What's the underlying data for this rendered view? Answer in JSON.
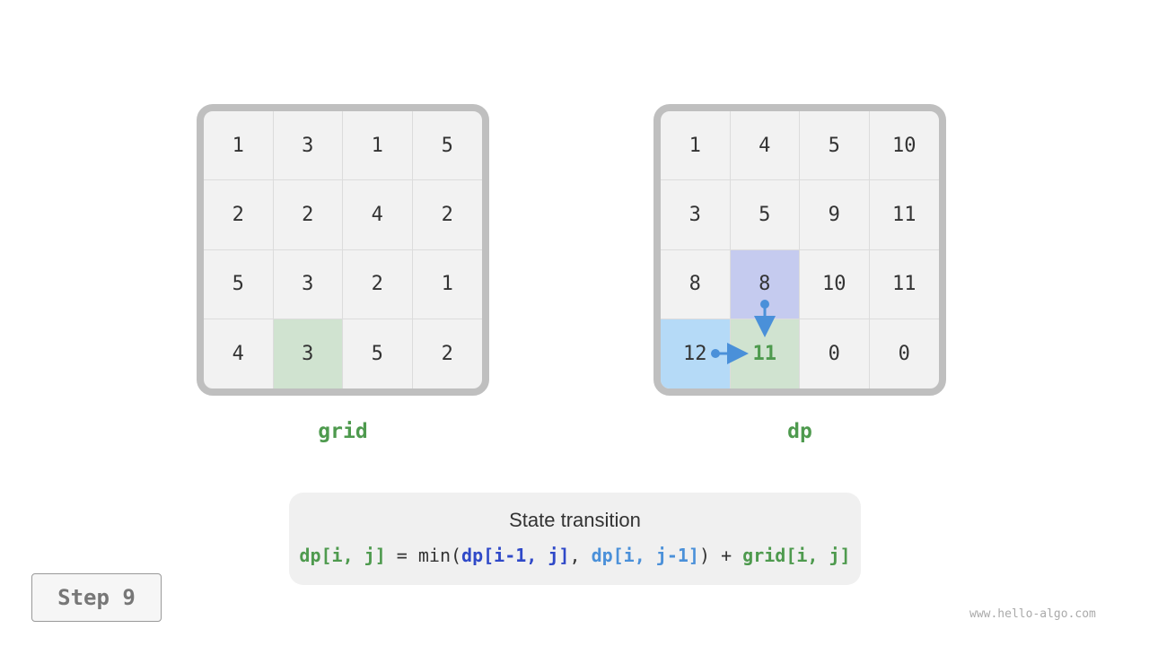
{
  "grid": {
    "label": "grid",
    "values": [
      [
        "1",
        "3",
        "1",
        "5"
      ],
      [
        "2",
        "2",
        "4",
        "2"
      ],
      [
        "5",
        "3",
        "2",
        "1"
      ],
      [
        "4",
        "3",
        "5",
        "2"
      ]
    ],
    "highlight": [
      3,
      1
    ]
  },
  "dp": {
    "label": "dp",
    "values": [
      [
        "1",
        "4",
        "5",
        "10"
      ],
      [
        "3",
        "5",
        "9",
        "11"
      ],
      [
        "8",
        "8",
        "10",
        "11"
      ],
      [
        "12",
        "11",
        "0",
        "0"
      ]
    ],
    "current": [
      3,
      1
    ],
    "top": [
      2,
      1
    ],
    "left": [
      3,
      0
    ]
  },
  "formula": {
    "title": "State transition",
    "lhs": "dp[i, j]",
    "eq": " = min(",
    "a": "dp[i-1, j]",
    "comma": ", ",
    "b": "dp[i, j-1]",
    "close": ") + ",
    "c": "grid[i, j]"
  },
  "step": {
    "label": "Step 9"
  },
  "watermark": "www.hello-algo.com",
  "colors": {
    "green": "#4e9a4e",
    "current_bg": "#d0e3d0",
    "top_bg": "#c5cbef",
    "left_bg": "#b5daf7",
    "arrow": "#4a90d9"
  }
}
